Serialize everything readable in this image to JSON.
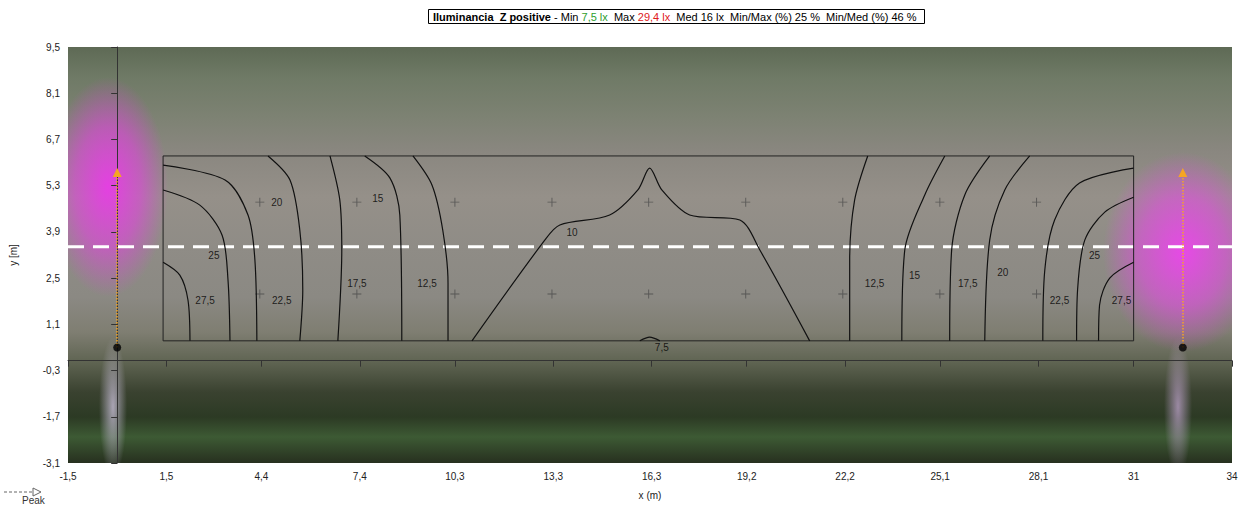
{
  "chart_data": {
    "type": "contour",
    "title": "Iluminancia  Z positive",
    "title_separator": "-",
    "stats": [
      {
        "name": "Min",
        "text": "7,5 lx",
        "color": "#2e9e2e"
      },
      {
        "name": "Max",
        "text": "29,4 lx",
        "color": "#e0201b"
      },
      {
        "name": "Med",
        "text": "16 lx"
      },
      {
        "name": "Min/Max (%)",
        "text": "25 %"
      },
      {
        "name": "Min/Med (%)",
        "text": "46 %"
      }
    ],
    "x_label": "x (m)",
    "y_label": "y [m]",
    "xlim": [
      -1.5,
      34
    ],
    "ylim": [
      -3.1,
      9.5
    ],
    "xticks": [
      {
        "value": -1.5,
        "label": "-1,5"
      },
      {
        "value": 1.5,
        "label": "1,5"
      },
      {
        "value": 4.4,
        "label": "4,4"
      },
      {
        "value": 7.4,
        "label": "7,4"
      },
      {
        "value": 10.3,
        "label": "10,3"
      },
      {
        "value": 13.3,
        "label": "13,3"
      },
      {
        "value": 16.3,
        "label": "16,3"
      },
      {
        "value": 19.2,
        "label": "19,2"
      },
      {
        "value": 22.2,
        "label": "22,2"
      },
      {
        "value": 25.1,
        "label": "25,1"
      },
      {
        "value": 28.1,
        "label": "28,1"
      },
      31,
      34
    ],
    "yticks": [
      {
        "value": -3.1,
        "label": "-3,1"
      },
      {
        "value": -1.7,
        "label": "-1,7"
      },
      {
        "value": -0.3,
        "label": "-0,3"
      },
      {
        "value": 1.1,
        "label": "1,1"
      },
      {
        "value": 2.5,
        "label": "2,5"
      },
      {
        "value": 3.9,
        "label": "3,9"
      },
      {
        "value": 5.3,
        "label": "5,3"
      },
      {
        "value": 6.7,
        "label": "6,7"
      },
      {
        "value": 8.1,
        "label": "8,1"
      },
      {
        "value": 9.5,
        "label": "9,5"
      }
    ],
    "grid": false,
    "peak_label": "Peak",
    "calculation_area": {
      "x": [
        1.4,
        31.0
      ],
      "y": [
        0.6,
        6.2
      ]
    },
    "calculation_points": {
      "x": [
        4.35,
        7.31,
        10.3,
        13.26,
        16.21,
        19.17,
        22.13,
        25.09,
        28.04
      ],
      "y": [
        4.8,
        2.02
      ]
    },
    "reference_line_y": 3.45,
    "luminaires": [
      {
        "x": 0,
        "y": 0.4,
        "y_end": 5.7
      },
      {
        "x": 32.5,
        "y": 0.4,
        "y_end": 5.7
      }
    ],
    "contours": [
      {
        "level": 27.5,
        "label": "27,5",
        "label_at": [
          2.68,
          1.83
        ],
        "points": [
          [
            1.4,
            2.98
          ],
          [
            1.91,
            2.59
          ],
          [
            2.16,
            1.83
          ],
          [
            2.22,
            0.6
          ]
        ]
      },
      {
        "level": 25,
        "label": "25",
        "label_at": [
          2.95,
          3.2
        ],
        "points": [
          [
            1.4,
            5.17
          ],
          [
            2.52,
            4.71
          ],
          [
            3.2,
            3.8
          ],
          [
            3.38,
            2.44
          ],
          [
            3.44,
            0.6
          ]
        ]
      },
      {
        "level": 22.5,
        "label": "22,5",
        "label_at": [
          5.02,
          1.83
        ],
        "points": [
          [
            1.4,
            5.92
          ],
          [
            3.29,
            5.47
          ],
          [
            3.99,
            4.41
          ],
          [
            4.2,
            3.05
          ],
          [
            4.26,
            0.6
          ]
        ]
      },
      {
        "level": 20,
        "label": "20",
        "label_at": [
          4.87,
          4.8
        ],
        "points": [
          [
            4.6,
            6.2
          ],
          [
            5.27,
            5.47
          ],
          [
            5.57,
            3.95
          ],
          [
            5.66,
            2.14
          ],
          [
            5.57,
            0.6
          ]
        ]
      },
      {
        "level": 17.5,
        "label": "17,5",
        "label_at": [
          7.31,
          2.35
        ],
        "points": [
          [
            6.49,
            6.2
          ],
          [
            6.79,
            4.86
          ],
          [
            6.85,
            3.35
          ],
          [
            6.73,
            0.6
          ]
        ]
      },
      {
        "level": 15,
        "label": "15",
        "label_at": [
          7.95,
          4.92
        ],
        "points": [
          [
            7.55,
            6.2
          ],
          [
            8.32,
            5.53
          ],
          [
            8.62,
            4.41
          ],
          [
            8.68,
            0.6
          ]
        ]
      },
      {
        "level": 12.5,
        "label": "12,5",
        "label_at": [
          9.45,
          2.35
        ],
        "points": [
          [
            9.02,
            6.2
          ],
          [
            9.6,
            5.32
          ],
          [
            9.93,
            3.95
          ],
          [
            10.09,
            2.35
          ],
          [
            10.09,
            0.6
          ]
        ]
      },
      {
        "level": 10,
        "label": "10",
        "label_at": [
          13.87,
          3.89
        ],
        "points": [
          [
            10.82,
            0.6
          ],
          [
            13.04,
            3.65
          ],
          [
            13.5,
            4.11
          ],
          [
            15.02,
            4.41
          ],
          [
            15.88,
            5.17
          ],
          [
            16.24,
            5.83
          ],
          [
            16.61,
            5.17
          ],
          [
            17.46,
            4.41
          ],
          [
            18.99,
            4.26
          ],
          [
            19.6,
            3.35
          ],
          [
            21.12,
            0.6
          ]
        ]
      },
      {
        "level": 7.5,
        "label": "7,5",
        "label_at": [
          16.61,
          0.41
        ],
        "points": [
          [
            15.94,
            0.6
          ],
          [
            16.24,
            0.71
          ],
          [
            16.55,
            0.6
          ]
        ]
      },
      {
        "level": 12.5,
        "label": "12,5",
        "label_at": [
          23.1,
          2.35
        ],
        "points": [
          [
            22.89,
            6.2
          ],
          [
            22.49,
            4.86
          ],
          [
            22.34,
            3.05
          ],
          [
            22.34,
            0.6
          ]
        ]
      },
      {
        "level": 15,
        "label": "15",
        "label_at": [
          24.32,
          2.59
        ],
        "points": [
          [
            25.24,
            6.2
          ],
          [
            24.63,
            5.02
          ],
          [
            24.02,
            3.35
          ],
          [
            23.93,
            0.6
          ]
        ]
      },
      {
        "level": 17.5,
        "label": "17,5",
        "label_at": [
          25.94,
          2.35
        ],
        "points": [
          [
            26.61,
            6.2
          ],
          [
            25.85,
            5.02
          ],
          [
            25.45,
            3.35
          ],
          [
            25.39,
            0.6
          ]
        ]
      },
      {
        "level": 20,
        "label": "20",
        "label_at": [
          27.01,
          2.68
        ],
        "points": [
          [
            27.83,
            6.2
          ],
          [
            27.07,
            5.17
          ],
          [
            26.61,
            3.65
          ],
          [
            26.46,
            0.6
          ]
        ]
      },
      {
        "level": 22.5,
        "label": "22,5",
        "label_at": [
          28.74,
          1.83
        ],
        "points": [
          [
            31.0,
            5.83
          ],
          [
            29.35,
            5.38
          ],
          [
            28.59,
            4.26
          ],
          [
            28.29,
            2.74
          ],
          [
            28.23,
            0.6
          ]
        ]
      },
      {
        "level": 25,
        "label": "25",
        "label_at": [
          29.81,
          3.2
        ],
        "points": [
          [
            31.0,
            4.95
          ],
          [
            30.12,
            4.5
          ],
          [
            29.51,
            3.65
          ],
          [
            29.29,
            2.14
          ],
          [
            29.26,
            0.6
          ]
        ]
      },
      {
        "level": 27.5,
        "label": "27,5",
        "label_at": [
          30.63,
          1.83
        ],
        "points": [
          [
            31.0,
            2.98
          ],
          [
            30.27,
            2.5
          ],
          [
            29.96,
            1.68
          ],
          [
            29.93,
            0.6
          ]
        ]
      }
    ]
  }
}
